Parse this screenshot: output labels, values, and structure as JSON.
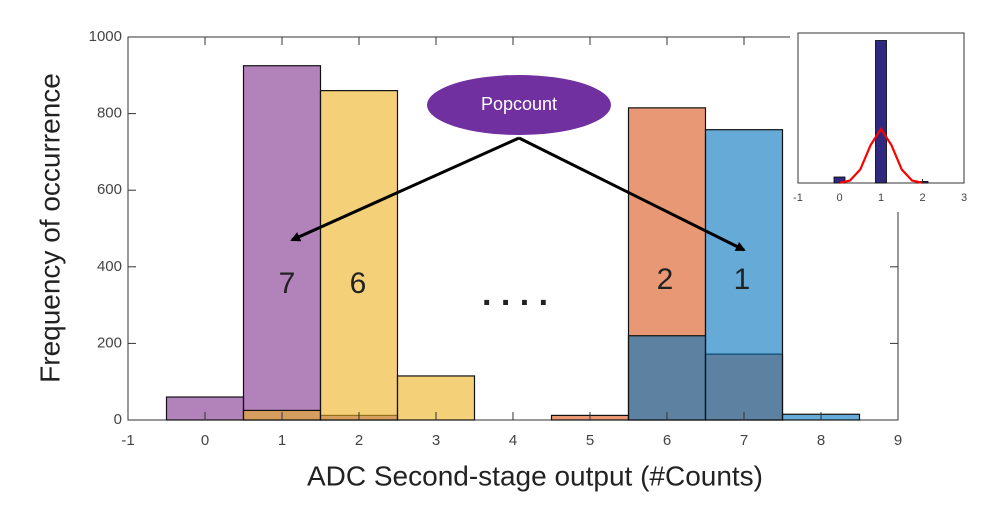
{
  "chart_data": [
    {
      "type": "histogram",
      "x_label": "ADC Second-stage output (#Counts)",
      "y_label": "Frequency of occurrence",
      "bins": [
        -0.5,
        0.5,
        1.5,
        2.5,
        3.5,
        4.5,
        5.5,
        6.5,
        7.5,
        8.5
      ],
      "series": [
        {
          "label": "7",
          "color": "#7e2f8e",
          "values": [
            60,
            925,
            12,
            0,
            0,
            0,
            0,
            0,
            0
          ]
        },
        {
          "label": "6",
          "color": "#edb120",
          "values": [
            0,
            25,
            860,
            115,
            0,
            0,
            0,
            0,
            0
          ]
        },
        {
          "label": "2",
          "color": "#d95319",
          "values": [
            0,
            0,
            0,
            0,
            0,
            12,
            815,
            172,
            0
          ]
        },
        {
          "label": "1",
          "color": "#0072bd",
          "values": [
            0,
            0,
            0,
            0,
            0,
            0,
            220,
            758,
            15
          ]
        }
      ],
      "xlim": [
        -1,
        9
      ],
      "xticks": [
        -1,
        0,
        1,
        2,
        3,
        4,
        5,
        6,
        7,
        8,
        9
      ],
      "ylim": [
        0,
        1000
      ],
      "yticks": [
        0,
        200,
        400,
        600,
        800,
        1000
      ],
      "annotations": [
        "Popcount",
        ". . . ."
      ]
    },
    {
      "type": "bar",
      "x": [
        0,
        1,
        2
      ],
      "values": [
        40,
        950,
        10
      ],
      "color": "#2f2a80",
      "curve": {
        "color": "#ff0000",
        "x": [
          0,
          0.25,
          0.5,
          0.75,
          1,
          1.25,
          1.5,
          1.75,
          2
        ],
        "values": [
          1,
          16,
          90,
          253,
          360,
          253,
          90,
          16,
          1
        ]
      },
      "xlim": [
        -1,
        3
      ],
      "xticks": [
        -1,
        0,
        1,
        2,
        3
      ],
      "ylim": [
        0,
        1000
      ]
    }
  ]
}
